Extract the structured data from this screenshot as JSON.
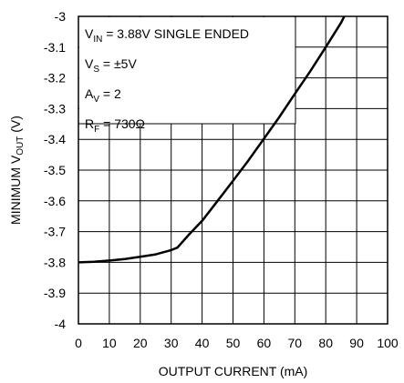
{
  "chart_data": {
    "type": "line",
    "xlabel": "OUTPUT CURRENT (mA)",
    "ylabel": {
      "main": "MINIMUM V",
      "sub": "OUT",
      "unit": " (V)"
    },
    "xlim": [
      0,
      100
    ],
    "ylim": [
      -4,
      -3
    ],
    "x_ticks": [
      "0",
      "10",
      "20",
      "30",
      "40",
      "50",
      "60",
      "70",
      "80",
      "90",
      "100"
    ],
    "y_ticks": [
      "-3",
      "-3.1",
      "-3.2",
      "-3.3",
      "-3.4",
      "-3.5",
      "-3.6",
      "-3.7",
      "-3.8",
      "-3.9",
      "-4"
    ],
    "grid": true,
    "series": [
      {
        "x": [
          0,
          5,
          10,
          15,
          20,
          25,
          30,
          32,
          36,
          40,
          45,
          50,
          55,
          60,
          65,
          70,
          75,
          80,
          85,
          86
        ],
        "y": [
          -3.8,
          -3.798,
          -3.794,
          -3.789,
          -3.782,
          -3.774,
          -3.76,
          -3.752,
          -3.707,
          -3.665,
          -3.6,
          -3.535,
          -3.468,
          -3.398,
          -3.327,
          -3.252,
          -3.178,
          -3.1,
          -3.02,
          -3.0
        ]
      }
    ],
    "annotations": [
      {
        "main": "V",
        "sub": "IN",
        "rest": " = 3.88V SINGLE ENDED"
      },
      {
        "main": "V",
        "sub": "S",
        "rest": " = ±5V"
      },
      {
        "main": "A",
        "sub": "V",
        "rest": " = 2"
      },
      {
        "main": "R",
        "sub": "F",
        "rest": " = 730Ω"
      }
    ]
  }
}
